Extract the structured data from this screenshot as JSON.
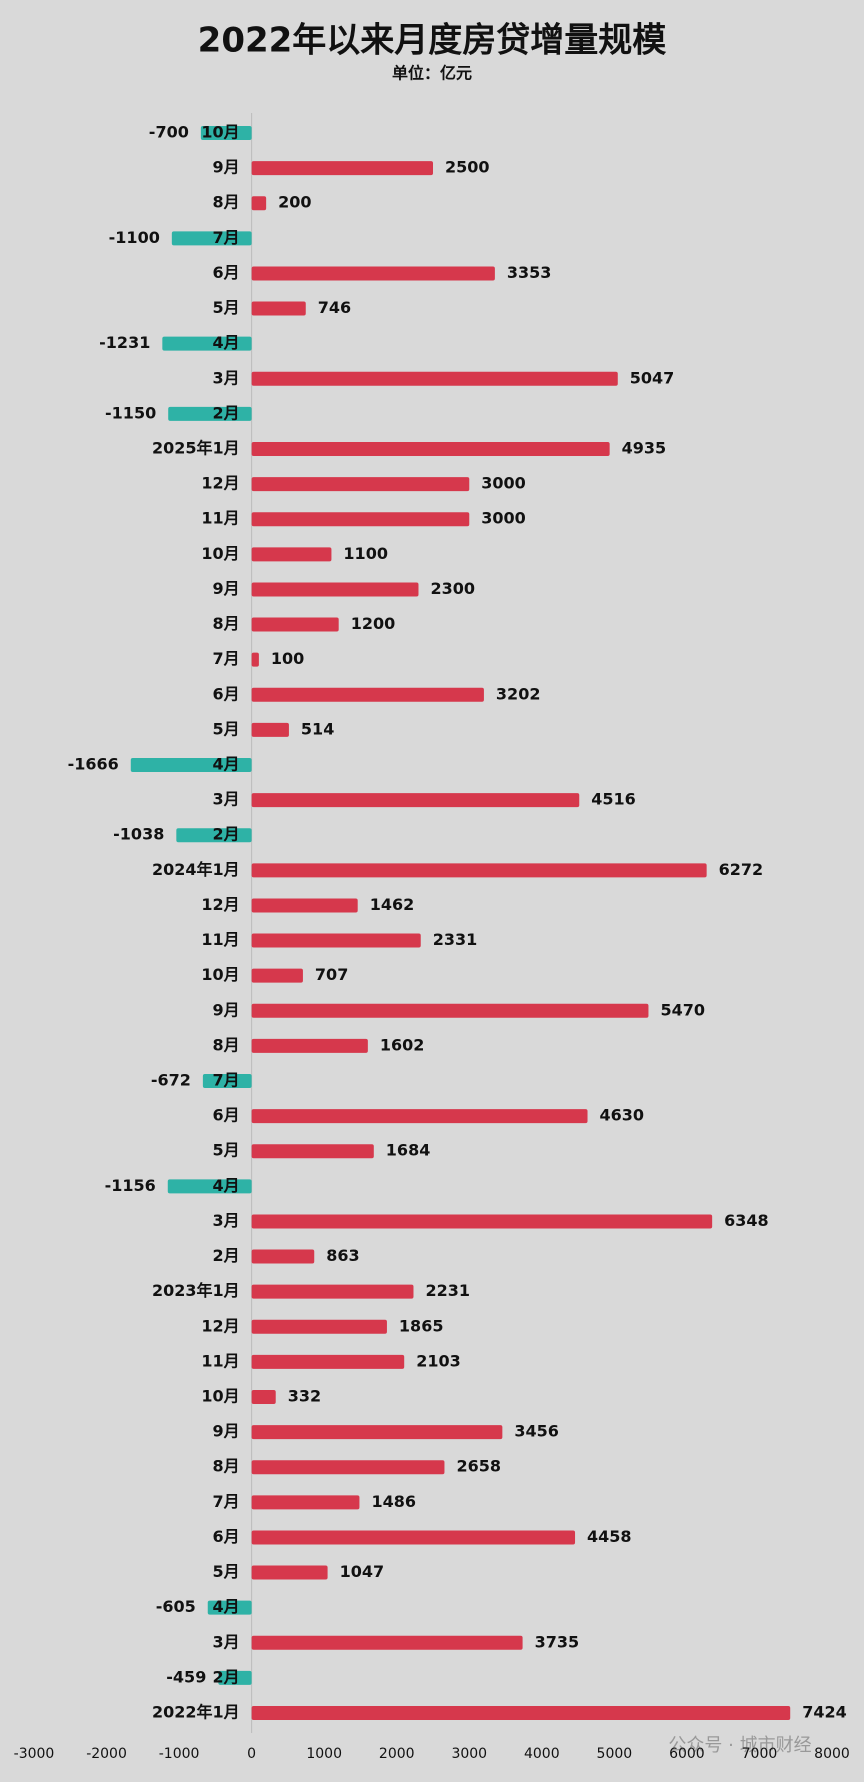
{
  "chart_data": {
    "type": "barh",
    "title": "2022年以来月度房贷增量规模",
    "subtitle": "单位：亿元",
    "categories": [
      "10月",
      "9月",
      "8月",
      "7月",
      "6月",
      "5月",
      "4月",
      "3月",
      "2月",
      "2025年1月",
      "12月",
      "11月",
      "10月",
      "9月",
      "8月",
      "7月",
      "6月",
      "5月",
      "4月",
      "3月",
      "2月",
      "2024年1月",
      "12月",
      "11月",
      "10月",
      "9月",
      "8月",
      "7月",
      "6月",
      "5月",
      "4月",
      "3月",
      "2月",
      "2023年1月",
      "12月",
      "11月",
      "10月",
      "9月",
      "8月",
      "7月",
      "6月",
      "5月",
      "4月",
      "3月",
      "2月",
      "2022年1月"
    ],
    "values": [
      -700,
      2500,
      200,
      -1100,
      3353,
      746,
      -1231,
      5047,
      -1150,
      4935,
      3000,
      3000,
      1100,
      2300,
      1200,
      100,
      3202,
      514,
      -1666,
      4516,
      -1038,
      6272,
      1462,
      2331,
      707,
      5470,
      1602,
      -672,
      4630,
      1684,
      -1156,
      6348,
      863,
      2231,
      1865,
      2103,
      332,
      3456,
      2658,
      1486,
      4458,
      1047,
      -605,
      3735,
      -459,
      7424
    ],
    "color": "#d6384c",
    "negative_color": "#2eb2a6",
    "xlim": [
      -3000,
      8000
    ],
    "xticks": [
      -3000,
      -2000,
      -1000,
      0,
      1000,
      2000,
      3000,
      4000,
      5000,
      6000,
      7000,
      8000
    ],
    "watermark": "公众号 · 城市财经"
  }
}
